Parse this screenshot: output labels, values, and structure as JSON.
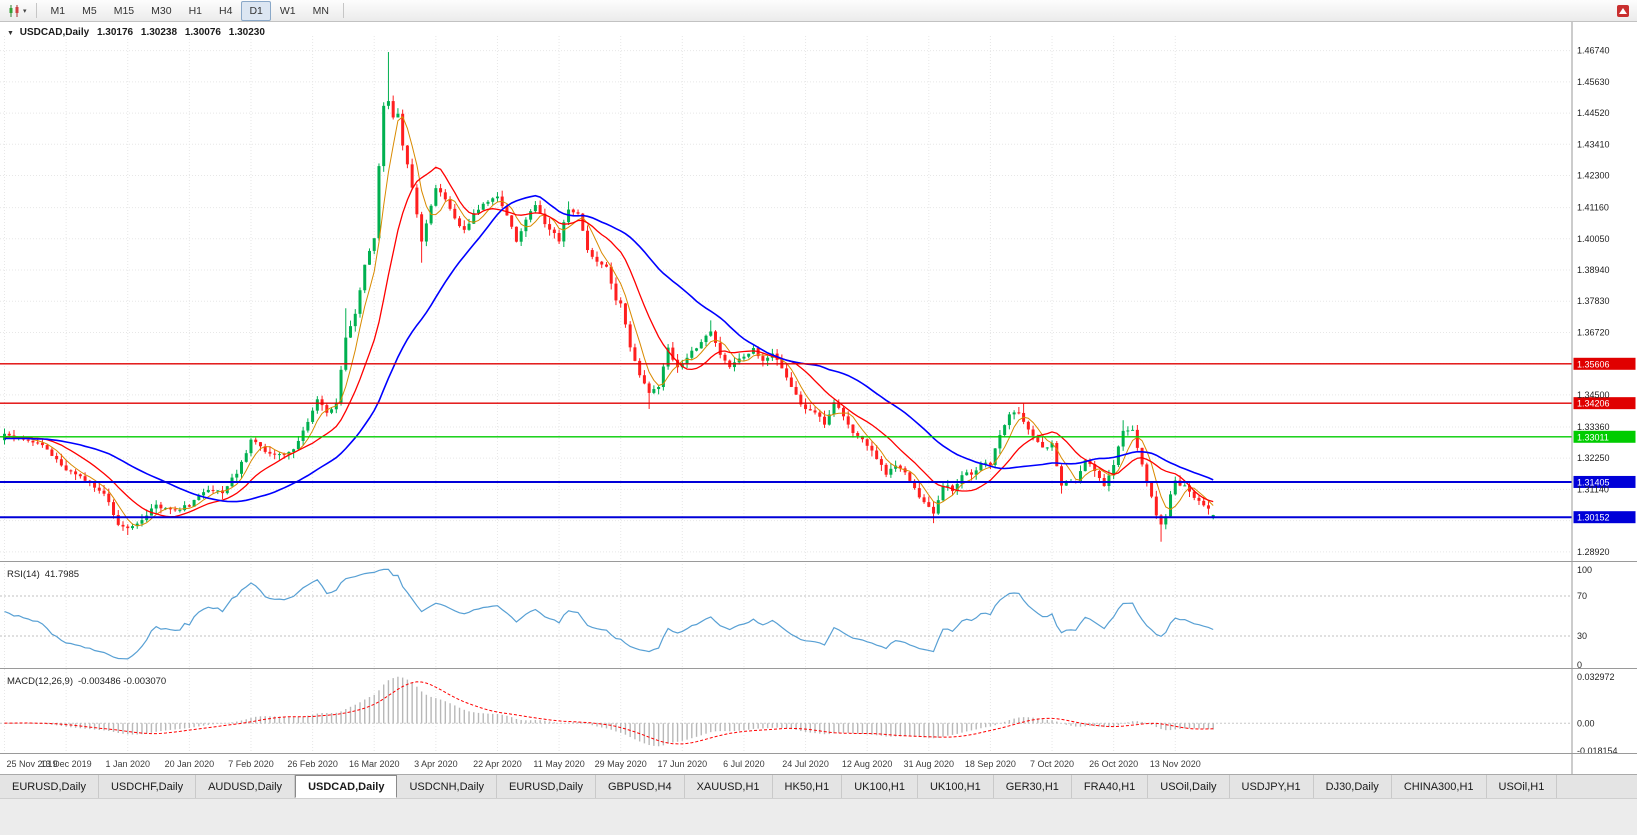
{
  "toolbar": {
    "timeframes": [
      {
        "label": "M1"
      },
      {
        "label": "M5"
      },
      {
        "label": "M15"
      },
      {
        "label": "M30"
      },
      {
        "label": "H1"
      },
      {
        "label": "H4"
      },
      {
        "label": "D1",
        "active": true
      },
      {
        "label": "W1"
      },
      {
        "label": "MN"
      }
    ]
  },
  "chart": {
    "header": {
      "symbol": "USDCAD,Daily",
      "open": "1.30176",
      "high": "1.30238",
      "low": "1.30076",
      "close": "1.30230"
    }
  },
  "chart_data": {
    "type": "candlestick",
    "symbol": "USDCAD",
    "timeframe": "Daily",
    "num_candles": 256,
    "price_range": [
      1.2863,
      1.4726
    ],
    "x_labels": [
      "25 Nov 2019",
      "13 Dec 2019",
      "1 Jan 2020",
      "20 Jan 2020",
      "7 Feb 2020",
      "26 Feb 2020",
      "16 Mar 2020",
      "3 Apr 2020",
      "22 Apr 2020",
      "11 May 2020",
      "29 May 2020",
      "17 Jun 2020",
      "6 Jul 2020",
      "24 Jul 2020",
      "12 Aug 2020",
      "31 Aug 2020",
      "18 Sep 2020",
      "7 Oct 2020",
      "26 Oct 2020",
      "13 Nov 2020"
    ],
    "candles_per_label_interval": 13,
    "y_axis_labels": [
      "1.46740",
      "1.45630",
      "1.44520",
      "1.43410",
      "1.42300",
      "1.41160",
      "1.40050",
      "1.38940",
      "1.37830",
      "1.36720",
      "1.35610",
      "1.34500",
      "1.33360",
      "1.32250",
      "1.31140",
      "1.30030",
      "1.28920"
    ],
    "price_anchors": [
      [
        0,
        1.3305
      ],
      [
        5,
        1.3288
      ],
      [
        9,
        1.3258
      ],
      [
        13,
        1.318
      ],
      [
        17,
        1.3152
      ],
      [
        21,
        1.3098
      ],
      [
        24,
        1.2992
      ],
      [
        26,
        1.2978
      ],
      [
        29,
        1.3002
      ],
      [
        32,
        1.3058
      ],
      [
        36,
        1.304
      ],
      [
        39,
        1.3058
      ],
      [
        43,
        1.3118
      ],
      [
        46,
        1.3108
      ],
      [
        49,
        1.3172
      ],
      [
        52,
        1.3288
      ],
      [
        55,
        1.3252
      ],
      [
        58,
        1.3238
      ],
      [
        61,
        1.3252
      ],
      [
        64,
        1.3348
      ],
      [
        66,
        1.3428
      ],
      [
        68,
        1.3388
      ],
      [
        70,
        1.3422
      ],
      [
        72,
        1.3658
      ],
      [
        74,
        1.3732
      ],
      [
        76,
        1.3918
      ],
      [
        78,
        1.4008
      ],
      [
        79,
        1.4258
      ],
      [
        80,
        1.4478
      ],
      [
        81,
        1.4502
      ],
      [
        82,
        1.4438
      ],
      [
        83,
        1.4455
      ],
      [
        84,
        1.4342
      ],
      [
        86,
        1.4183
      ],
      [
        88,
        1.3992
      ],
      [
        89,
        1.4062
      ],
      [
        91,
        1.4192
      ],
      [
        93,
        1.4142
      ],
      [
        95,
        1.4082
      ],
      [
        97,
        1.4032
      ],
      [
        99,
        1.4092
      ],
      [
        101,
        1.4132
      ],
      [
        104,
        1.4152
      ],
      [
        106,
        1.4092
      ],
      [
        108,
        1.3992
      ],
      [
        110,
        1.4072
      ],
      [
        112,
        1.4132
      ],
      [
        114,
        1.4052
      ],
      [
        117,
        1.4002
      ],
      [
        119,
        1.4112
      ],
      [
        121,
        1.4092
      ],
      [
        123,
        1.3972
      ],
      [
        125,
        1.3922
      ],
      [
        127,
        1.3902
      ],
      [
        129,
        1.3792
      ],
      [
        130,
        1.3782
      ],
      [
        132,
        1.3622
      ],
      [
        134,
        1.3522
      ],
      [
        136,
        1.3452
      ],
      [
        138,
        1.3482
      ],
      [
        140,
        1.3612
      ],
      [
        142,
        1.3552
      ],
      [
        143,
        1.3562
      ],
      [
        145,
        1.3602
      ],
      [
        147,
        1.3632
      ],
      [
        149,
        1.3682
      ],
      [
        151,
        1.3592
      ],
      [
        153,
        1.3548
      ],
      [
        156,
        1.3592
      ],
      [
        158,
        1.3612
      ],
      [
        160,
        1.3572
      ],
      [
        162,
        1.3592
      ],
      [
        164,
        1.3542
      ],
      [
        166,
        1.3478
      ],
      [
        168,
        1.3412
      ],
      [
        169,
        1.3398
      ],
      [
        171,
        1.3382
      ],
      [
        173,
        1.3348
      ],
      [
        175,
        1.3422
      ],
      [
        177,
        1.3372
      ],
      [
        179,
        1.3308
      ],
      [
        181,
        1.3292
      ],
      [
        182,
        1.3268
      ],
      [
        184,
        1.3222
      ],
      [
        186,
        1.3172
      ],
      [
        188,
        1.3202
      ],
      [
        190,
        1.3172
      ],
      [
        192,
        1.3112
      ],
      [
        194,
        1.3062
      ],
      [
        195,
        1.3048
      ],
      [
        196,
        1.3032
      ],
      [
        198,
        1.3132
      ],
      [
        200,
        1.3112
      ],
      [
        202,
        1.3162
      ],
      [
        204,
        1.3172
      ],
      [
        206,
        1.3202
      ],
      [
        208,
        1.3208
      ],
      [
        210,
        1.3312
      ],
      [
        212,
        1.3382
      ],
      [
        214,
        1.3392
      ],
      [
        215,
        1.3352
      ],
      [
        217,
        1.3302
      ],
      [
        219,
        1.3262
      ],
      [
        221,
        1.3272
      ],
      [
        223,
        1.3132
      ],
      [
        226,
        1.3142
      ],
      [
        228,
        1.3212
      ],
      [
        230,
        1.3182
      ],
      [
        232,
        1.3132
      ],
      [
        234,
        1.3202
      ],
      [
        236,
        1.3322
      ],
      [
        238,
        1.3322
      ],
      [
        240,
        1.3202
      ],
      [
        242,
        1.3082
      ],
      [
        243,
        1.3022
      ],
      [
        244,
        1.2988
      ],
      [
        245,
        1.3022
      ],
      [
        246,
        1.3102
      ],
      [
        247,
        1.3142
      ],
      [
        249,
        1.3122
      ],
      [
        251,
        1.3078
      ],
      [
        253,
        1.3062
      ],
      [
        255,
        1.3023
      ]
    ],
    "forced_extremes": [
      {
        "i": 26,
        "low": 1.2952
      },
      {
        "i": 72,
        "high": 1.3758
      },
      {
        "i": 81,
        "high": 1.4669
      },
      {
        "i": 88,
        "low": 1.392
      },
      {
        "i": 119,
        "high": 1.4138
      },
      {
        "i": 136,
        "low": 1.34
      },
      {
        "i": 149,
        "high": 1.3715
      },
      {
        "i": 196,
        "low": 1.2994
      },
      {
        "i": 215,
        "high": 1.342
      },
      {
        "i": 223,
        "low": 1.3099
      },
      {
        "i": 236,
        "high": 1.336
      },
      {
        "i": 244,
        "low": 1.2928
      }
    ],
    "last_candle": {
      "open": 1.30176,
      "high": 1.30238,
      "low": 1.30076,
      "close": 1.3023
    },
    "hlines": [
      {
        "price": 1.35606,
        "label": "1.35606",
        "color": "#e00000",
        "width": 1.4
      },
      {
        "price": 1.34206,
        "label": "1.34206",
        "color": "#e00000",
        "width": 1.4
      },
      {
        "price": 1.33011,
        "label": "1.33011",
        "color": "#00cc00",
        "width": 1.4
      },
      {
        "price": 1.31405,
        "label": "1.31405",
        "color": "#0000d8",
        "width": 2
      },
      {
        "price": 1.30152,
        "label": "1.30152",
        "color": "#0000d8",
        "width": 2
      }
    ],
    "moving_averages": [
      {
        "period": 5,
        "color": "#d98a00",
        "width": 1
      },
      {
        "period": 13,
        "color": "#ff0000",
        "width": 1.3
      },
      {
        "period": 34,
        "color": "#0000ff",
        "width": 1.6
      }
    ],
    "rsi": {
      "name": "RSI(14)",
      "value_text": "41.7985",
      "period": 14,
      "color": "#58a0d4",
      "levels": [
        30,
        70
      ],
      "axis_labels": [
        {
          "text": "100",
          "value": 100
        },
        {
          "text": "70",
          "value": 70
        },
        {
          "text": "30",
          "value": 30
        },
        {
          "text": "0",
          "value": 0
        }
      ]
    },
    "macd": {
      "name": "MACD(12,26,9)",
      "values_text": "-0.003486 -0.003070",
      "fast": 12,
      "slow": 26,
      "signal": 9,
      "range": [
        -0.018154,
        0.032972
      ],
      "hist_color": "#b8b8b8",
      "signal_color": "#ff0000",
      "axis_labels": [
        {
          "text": "0.032972",
          "value": 0.032972
        },
        {
          "text": "0.00",
          "value": 0
        },
        {
          "text": "-0.018154",
          "value": -0.018154
        }
      ]
    },
    "colors": {
      "up": "#00b050",
      "down": "#ff1f1f",
      "grid": "#e7e7e7",
      "axis_text": "#222222"
    }
  },
  "tabs": [
    {
      "label": "EURUSD,Daily"
    },
    {
      "label": "USDCHF,Daily"
    },
    {
      "label": "AUDUSD,Daily"
    },
    {
      "label": "USDCAD,Daily",
      "active": true
    },
    {
      "label": "USDCNH,Daily"
    },
    {
      "label": "EURUSD,Daily"
    },
    {
      "label": "GBPUSD,H4"
    },
    {
      "label": "XAUUSD,H1"
    },
    {
      "label": "HK50,H1"
    },
    {
      "label": "UK100,H1"
    },
    {
      "label": "UK100,H1"
    },
    {
      "label": "GER30,H1"
    },
    {
      "label": "FRA40,H1"
    },
    {
      "label": "USOil,Daily"
    },
    {
      "label": "USDJPY,H1"
    },
    {
      "label": "DJ30,Daily"
    },
    {
      "label": "CHINA300,H1"
    },
    {
      "label": "USOil,H1"
    }
  ]
}
